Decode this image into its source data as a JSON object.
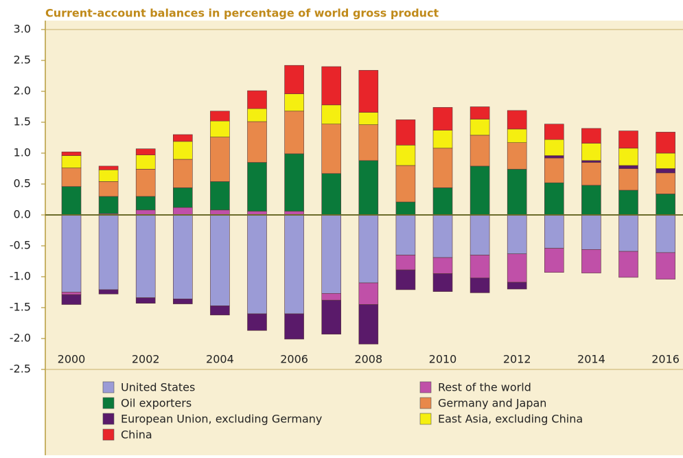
{
  "chart_data": {
    "type": "stacked-bar",
    "title": "Current-account balances in percentage of world gross product",
    "categories": [
      "2000",
      null,
      "2002",
      null,
      "2004",
      null,
      "2006",
      null,
      "2008",
      null,
      "2010",
      null,
      "2012",
      null,
      "2014",
      null,
      "2016"
    ],
    "ylim": [
      -2.5,
      3.0
    ],
    "yticks": [
      {
        "value": 3.0,
        "label": "3.0"
      },
      {
        "value": 2.5,
        "label": "2.5"
      },
      {
        "value": 2.0,
        "label": "2.0"
      },
      {
        "value": 1.5,
        "label": "1.5"
      },
      {
        "value": 1.0,
        "label": "1.0"
      },
      {
        "value": 0.5,
        "label": "0.5"
      },
      {
        "value": 0,
        "label": "0.0"
      },
      {
        "value": -0.5,
        "label": "-0.5"
      },
      {
        "value": -1.0,
        "label": "-1.0"
      },
      {
        "value": -1.5,
        "label": "-1.5"
      },
      {
        "value": -2.0,
        "label": "-2.0"
      },
      {
        "value": -2.5,
        "label": "-2.5"
      }
    ],
    "grid": false,
    "series": [
      {
        "name": "United States",
        "color": "#9b9bd6",
        "values": [
          -1.25,
          -1.21,
          -1.34,
          -1.36,
          -1.47,
          -1.6,
          -1.6,
          -1.27,
          -1.1,
          -0.65,
          -0.69,
          -0.65,
          -0.63,
          -0.54,
          -0.56,
          -0.59,
          -0.61
        ]
      },
      {
        "name": "Rest of the world",
        "color": "#c050a8",
        "values": [
          -0.04,
          0.02,
          0.08,
          0.12,
          0.08,
          0.06,
          0.06,
          -0.11,
          -0.35,
          -0.24,
          -0.26,
          -0.37,
          -0.46,
          -0.39,
          -0.38,
          -0.42,
          -0.43
        ]
      },
      {
        "name": "Oil exporters",
        "color": "#0a7a3a",
        "values": [
          0.46,
          0.28,
          0.22,
          0.32,
          0.46,
          0.79,
          0.93,
          0.67,
          0.88,
          0.21,
          0.44,
          0.79,
          0.74,
          0.52,
          0.48,
          0.4,
          0.34
        ]
      },
      {
        "name": "Germany and Japan",
        "color": "#e8884a",
        "values": [
          0.3,
          0.24,
          0.44,
          0.46,
          0.72,
          0.66,
          0.69,
          0.8,
          0.58,
          0.59,
          0.64,
          0.5,
          0.43,
          0.4,
          0.37,
          0.35,
          0.34
        ]
      },
      {
        "name": "European Union, excluding Germany",
        "color": "#5a1a6a",
        "values": [
          -0.16,
          -0.07,
          -0.09,
          -0.08,
          -0.15,
          -0.27,
          -0.41,
          -0.55,
          -0.64,
          -0.32,
          -0.29,
          -0.24,
          -0.11,
          0.04,
          0.03,
          0.05,
          0.07
        ]
      },
      {
        "name": "East Asia, excluding China",
        "color": "#f5ef10",
        "values": [
          0.2,
          0.19,
          0.23,
          0.29,
          0.26,
          0.21,
          0.28,
          0.31,
          0.2,
          0.33,
          0.29,
          0.26,
          0.22,
          0.26,
          0.28,
          0.28,
          0.25
        ]
      },
      {
        "name": "China",
        "color": "#e8252a",
        "values": [
          0.06,
          0.06,
          0.1,
          0.11,
          0.16,
          0.29,
          0.46,
          0.62,
          0.68,
          0.41,
          0.37,
          0.2,
          0.3,
          0.25,
          0.24,
          0.28,
          0.34
        ]
      }
    ]
  }
}
